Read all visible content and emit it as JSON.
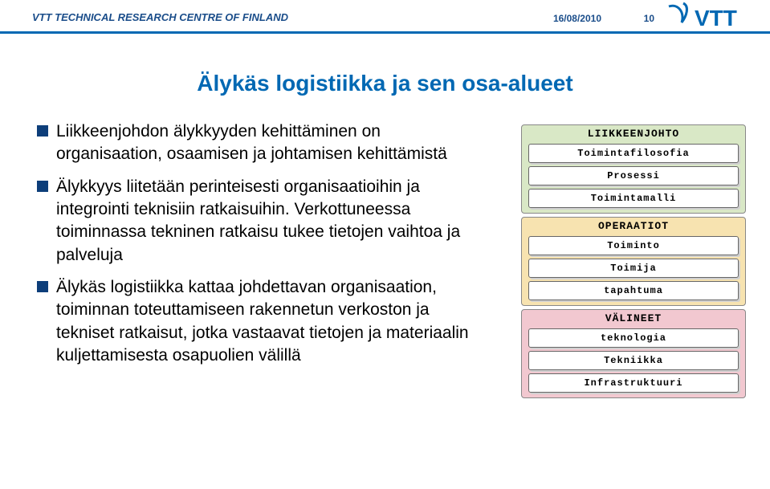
{
  "header": {
    "org": "VTT TECHNICAL RESEARCH CENTRE OF FINLAND",
    "date": "16/08/2010",
    "page": "10",
    "logo_text": "VTT",
    "logo_color": "#0068b3"
  },
  "title": "Älykäs logistiikka ja sen osa-alueet",
  "bullets": [
    "Liikkeenjohdon älykkyyden kehittäminen on organisaation, osaamisen ja johtamisen kehittämistä",
    "Älykkyys liitetään perinteisesti organisaatioihin ja integrointi teknisiin ratkaisuihin. Verkottuneessa toiminnassa tekninen ratkaisu tukee tietojen vaihtoa ja palveluja",
    "Älykäs logistiikka kattaa johdettavan organisaation, toiminnan toteuttamiseen rakennetun verkoston ja tekniset ratkaisut, jotka vastaavat tietojen ja materiaalin kuljettamisesta osapuolien välillä"
  ],
  "diagram": {
    "layers": [
      {
        "header": "LIIKKEENJOHTO",
        "bg": "#d9e8c6",
        "items": [
          "Toimintafilosofia",
          "Prosessi",
          "Toimintamalli"
        ]
      },
      {
        "header": "OPERAATIOT",
        "bg": "#f7e3b0",
        "items": [
          "Toiminto",
          "Toimija",
          "tapahtuma"
        ]
      },
      {
        "header": "VÄLINEET",
        "bg": "#f2c8d0",
        "items": [
          "teknologia",
          "Tekniikka",
          "Infrastruktuuri"
        ]
      }
    ]
  },
  "colors": {
    "header_rule": "#0068b3",
    "title_color": "#0068b3",
    "bullet_marker": "#0d3e7a"
  }
}
